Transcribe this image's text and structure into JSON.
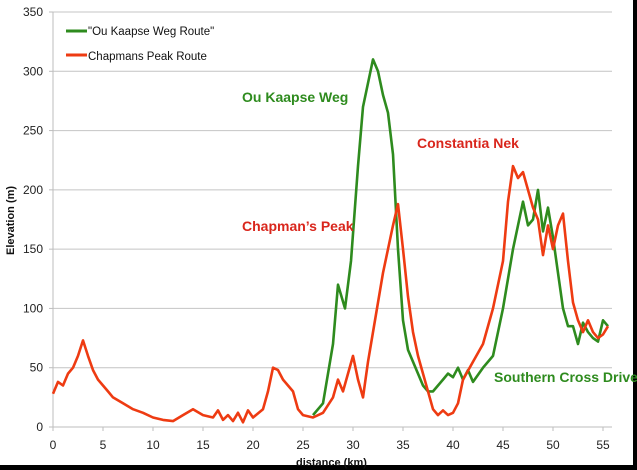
{
  "chart_data": {
    "type": "line",
    "title": "",
    "xlabel": "distance (km)",
    "ylabel": "Elevation (m)",
    "xlim": [
      0,
      56
    ],
    "ylim": [
      0,
      350
    ],
    "x_ticks": [
      "0",
      "5",
      "10",
      "15",
      "20",
      "25",
      "30",
      "35",
      "40",
      "45",
      "50",
      "55"
    ],
    "y_ticks": [
      "0",
      "50",
      "100",
      "150",
      "200",
      "250",
      "300",
      "350"
    ],
    "grid": "horizontal",
    "legend_position": "upper-left",
    "series": [
      {
        "name": "\"Ou Kaapse Weg Route\"",
        "color": "#2e8b1e",
        "x": [
          26,
          27,
          28,
          28.5,
          29.2,
          29.8,
          30.5,
          31,
          31.5,
          32,
          32.5,
          33,
          33.5,
          34,
          34.5,
          35,
          35.5,
          36,
          36.5,
          37,
          37.5,
          38,
          38.5,
          39,
          39.5,
          40,
          40.5,
          41,
          41.5,
          42,
          43,
          44,
          45,
          46,
          47,
          47.5,
          48,
          48.5,
          49,
          49.5,
          50,
          50.5,
          51,
          51.5,
          52,
          52.5,
          53,
          53.5,
          54,
          54.5,
          55,
          55.5
        ],
        "values": [
          10,
          20,
          70,
          120,
          100,
          140,
          220,
          270,
          290,
          310,
          300,
          280,
          265,
          230,
          150,
          90,
          65,
          55,
          45,
          35,
          30,
          30,
          35,
          40,
          45,
          42,
          50,
          40,
          48,
          38,
          50,
          60,
          100,
          150,
          190,
          170,
          175,
          200,
          165,
          185,
          160,
          130,
          100,
          85,
          85,
          70,
          88,
          80,
          75,
          72,
          90,
          85
        ]
      },
      {
        "name": "Chapmans Peak Route",
        "color": "#ee3b12",
        "x": [
          0,
          0.5,
          1,
          1.5,
          2,
          2.5,
          3,
          3.5,
          4,
          4.5,
          5,
          5.5,
          6,
          7,
          8,
          9,
          10,
          11,
          12,
          13,
          14,
          15,
          16,
          16.5,
          17,
          17.5,
          18,
          18.5,
          19,
          19.5,
          20,
          21,
          21.5,
          22,
          22.5,
          23,
          23.5,
          24,
          24.5,
          25,
          26,
          27,
          28,
          28.5,
          29,
          29.5,
          30,
          30.5,
          31,
          31.5,
          32,
          33,
          34,
          34.5,
          35,
          35.5,
          36,
          36.5,
          37,
          37.5,
          38,
          38.5,
          39,
          39.5,
          40,
          40.5,
          41,
          42,
          43,
          44,
          45,
          45.5,
          46,
          46.5,
          47,
          47.5,
          48,
          48.5,
          49,
          49.5,
          50,
          50.5,
          51,
          51.5,
          52,
          52.5,
          53,
          53.5,
          54,
          54.5,
          55,
          55.5
        ],
        "values": [
          28,
          38,
          35,
          45,
          50,
          60,
          73,
          60,
          48,
          40,
          35,
          30,
          25,
          20,
          15,
          12,
          8,
          6,
          5,
          10,
          15,
          10,
          8,
          14,
          6,
          10,
          5,
          12,
          4,
          14,
          8,
          15,
          30,
          50,
          48,
          40,
          35,
          30,
          15,
          10,
          8,
          12,
          25,
          40,
          30,
          45,
          60,
          40,
          25,
          55,
          80,
          130,
          170,
          188,
          150,
          110,
          80,
          60,
          45,
          30,
          15,
          10,
          14,
          10,
          12,
          20,
          40,
          55,
          70,
          100,
          140,
          190,
          220,
          210,
          215,
          200,
          185,
          175,
          145,
          170,
          150,
          170,
          180,
          140,
          105,
          90,
          80,
          90,
          80,
          75,
          78,
          85
        ]
      }
    ],
    "annotations": [
      {
        "text": "Ou Kaapse Weg",
        "color": "#2e8b1e"
      },
      {
        "text": "Chapman’s Peak",
        "color": "#d9261c"
      },
      {
        "text": "Constantia Nek",
        "color": "#d9261c"
      },
      {
        "text": "Southern Cross Drive",
        "color": "#2e8b1e"
      }
    ]
  },
  "legend": {
    "item_0": "\"Ou Kaapse Weg Route\"",
    "item_1": "Chapmans Peak Route"
  },
  "axes": {
    "xlabel": "distance (km)",
    "ylabel": "Elevation (m)"
  },
  "labels": {
    "ou_kaapse": "Ou Kaapse Weg",
    "chapmans": "Chapman’s Peak",
    "constantia": "Constantia Nek",
    "southern_cross": "Southern Cross Drive"
  }
}
